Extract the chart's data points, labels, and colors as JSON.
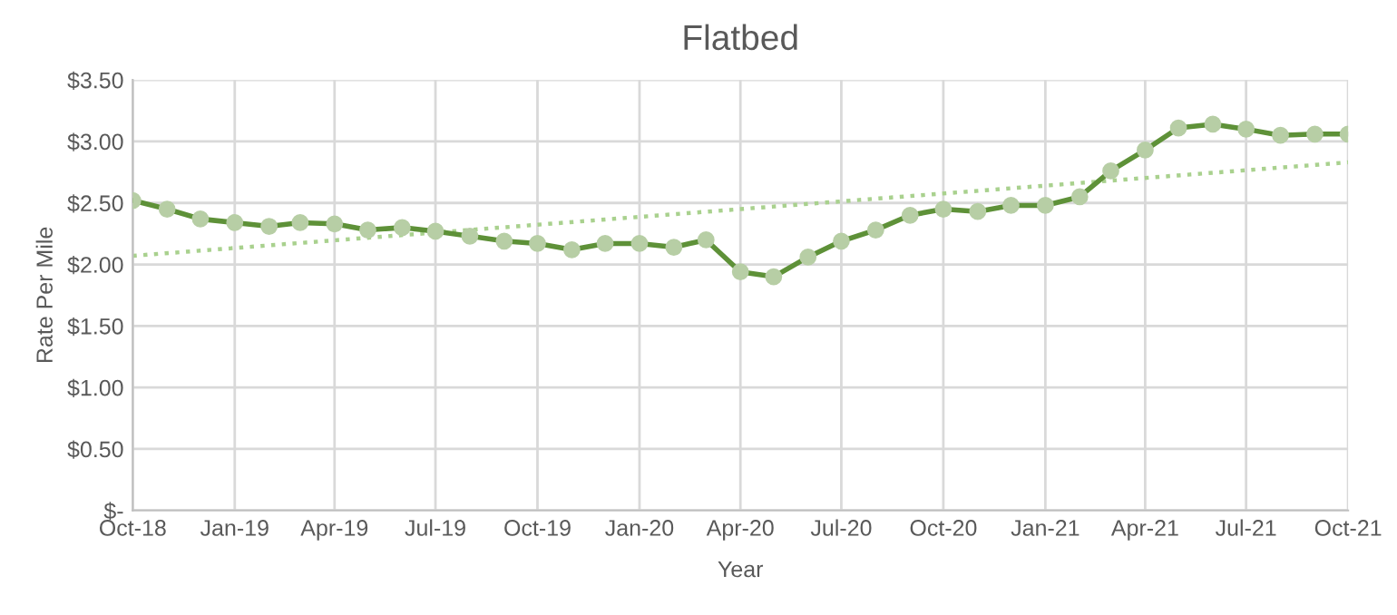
{
  "chart_data": {
    "type": "line",
    "title": "Flatbed",
    "xlabel": "Year",
    "ylabel": "Rate Per Mile",
    "x": [
      "2018-10",
      "2018-11",
      "2018-12",
      "2019-01",
      "2019-02",
      "2019-03",
      "2019-04",
      "2019-05",
      "2019-06",
      "2019-07",
      "2019-08",
      "2019-09",
      "2019-10",
      "2019-11",
      "2019-12",
      "2020-01",
      "2020-02",
      "2020-03",
      "2020-04",
      "2020-05",
      "2020-06",
      "2020-07",
      "2020-08",
      "2020-09",
      "2020-10",
      "2020-11",
      "2020-12",
      "2021-01",
      "2021-02",
      "2021-03",
      "2021-04",
      "2021-05",
      "2021-06",
      "2021-07",
      "2021-08",
      "2021-09",
      "2021-10"
    ],
    "series": [
      {
        "color": "#5e9138",
        "marker": "circle",
        "line_style": "solid",
        "values": [
          2.52,
          2.45,
          2.37,
          2.34,
          2.31,
          2.34,
          2.33,
          2.28,
          2.3,
          2.27,
          2.23,
          2.19,
          2.17,
          2.12,
          2.17,
          2.17,
          2.14,
          2.2,
          1.94,
          1.9,
          2.06,
          2.19,
          2.28,
          2.4,
          2.45,
          2.43,
          2.48,
          2.48,
          2.55,
          2.76,
          2.93,
          3.11,
          3.14,
          3.1,
          3.05,
          3.06,
          3.06
        ]
      },
      {
        "type": "line",
        "color": "#a9d18e",
        "marker": "none",
        "line_style": "dotted",
        "x": [
          "2018-10",
          "2021-10"
        ],
        "values": [
          2.07,
          2.83
        ]
      }
    ],
    "xlim": [
      "2018-10",
      "2021-10"
    ],
    "xticks": [
      {
        "value": "2018-10",
        "label": "Oct-18"
      },
      {
        "value": "2019-01",
        "label": "Jan-19"
      },
      {
        "value": "2019-04",
        "label": "Apr-19"
      },
      {
        "value": "2019-07",
        "label": "Jul-19"
      },
      {
        "value": "2019-10",
        "label": "Oct-19"
      },
      {
        "value": "2020-01",
        "label": "Jan-20"
      },
      {
        "value": "2020-04",
        "label": "Apr-20"
      },
      {
        "value": "2020-07",
        "label": "Jul-20"
      },
      {
        "value": "2020-10",
        "label": "Oct-20"
      },
      {
        "value": "2021-01",
        "label": "Jan-21"
      },
      {
        "value": "2021-04",
        "label": "Apr-21"
      },
      {
        "value": "2021-07",
        "label": "Jul-21"
      },
      {
        "value": "2021-10",
        "label": "Oct-21"
      }
    ],
    "ylim": [
      0,
      3.5
    ],
    "yticks": [
      {
        "value": 0,
        "label": "$-"
      },
      {
        "value": 0.5,
        "label": "$0.50"
      },
      {
        "value": 1,
        "label": "$1.00"
      },
      {
        "value": 1.5,
        "label": "$1.50"
      },
      {
        "value": 2,
        "label": "$2.00"
      },
      {
        "value": 2.5,
        "label": "$2.50"
      },
      {
        "value": 3,
        "label": "$3.00"
      },
      {
        "value": 3.5,
        "label": "$3.50"
      }
    ],
    "grid": true,
    "legend": false
  }
}
